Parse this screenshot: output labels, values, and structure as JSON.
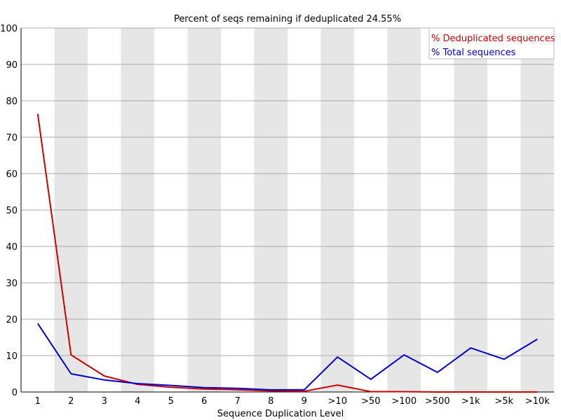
{
  "chart_data": {
    "type": "line",
    "title": "Percent of seqs remaining if deduplicated 24.55%",
    "xlabel": "Sequence Duplication Level",
    "ylabel": "",
    "categories": [
      "1",
      "2",
      "3",
      "4",
      "5",
      "6",
      "7",
      "8",
      "9",
      ">10",
      ">50",
      ">100",
      ">500",
      ">1k",
      ">5k",
      ">10k"
    ],
    "ylim": [
      0,
      100
    ],
    "yticks": [
      0,
      10,
      20,
      30,
      40,
      50,
      60,
      70,
      80,
      90,
      100
    ],
    "grid": true,
    "legend_position": "top-right",
    "series": [
      {
        "name": "% Deduplicated sequences",
        "color": "#cc0000",
        "values": [
          76.4,
          10.2,
          4.4,
          2.1,
          1.3,
          0.8,
          0.6,
          0.3,
          0.2,
          1.9,
          0.1,
          0.1,
          0.0,
          0.0,
          0.0,
          0.0
        ]
      },
      {
        "name": "% Total sequences",
        "color": "#0000cc",
        "values": [
          18.8,
          5.0,
          3.3,
          2.3,
          1.8,
          1.2,
          1.0,
          0.6,
          0.6,
          9.6,
          3.5,
          10.2,
          5.4,
          12.1,
          9.0,
          14.5
        ]
      }
    ],
    "band_color": "#e6e6e6",
    "grid_color": "#aaaaaa"
  }
}
